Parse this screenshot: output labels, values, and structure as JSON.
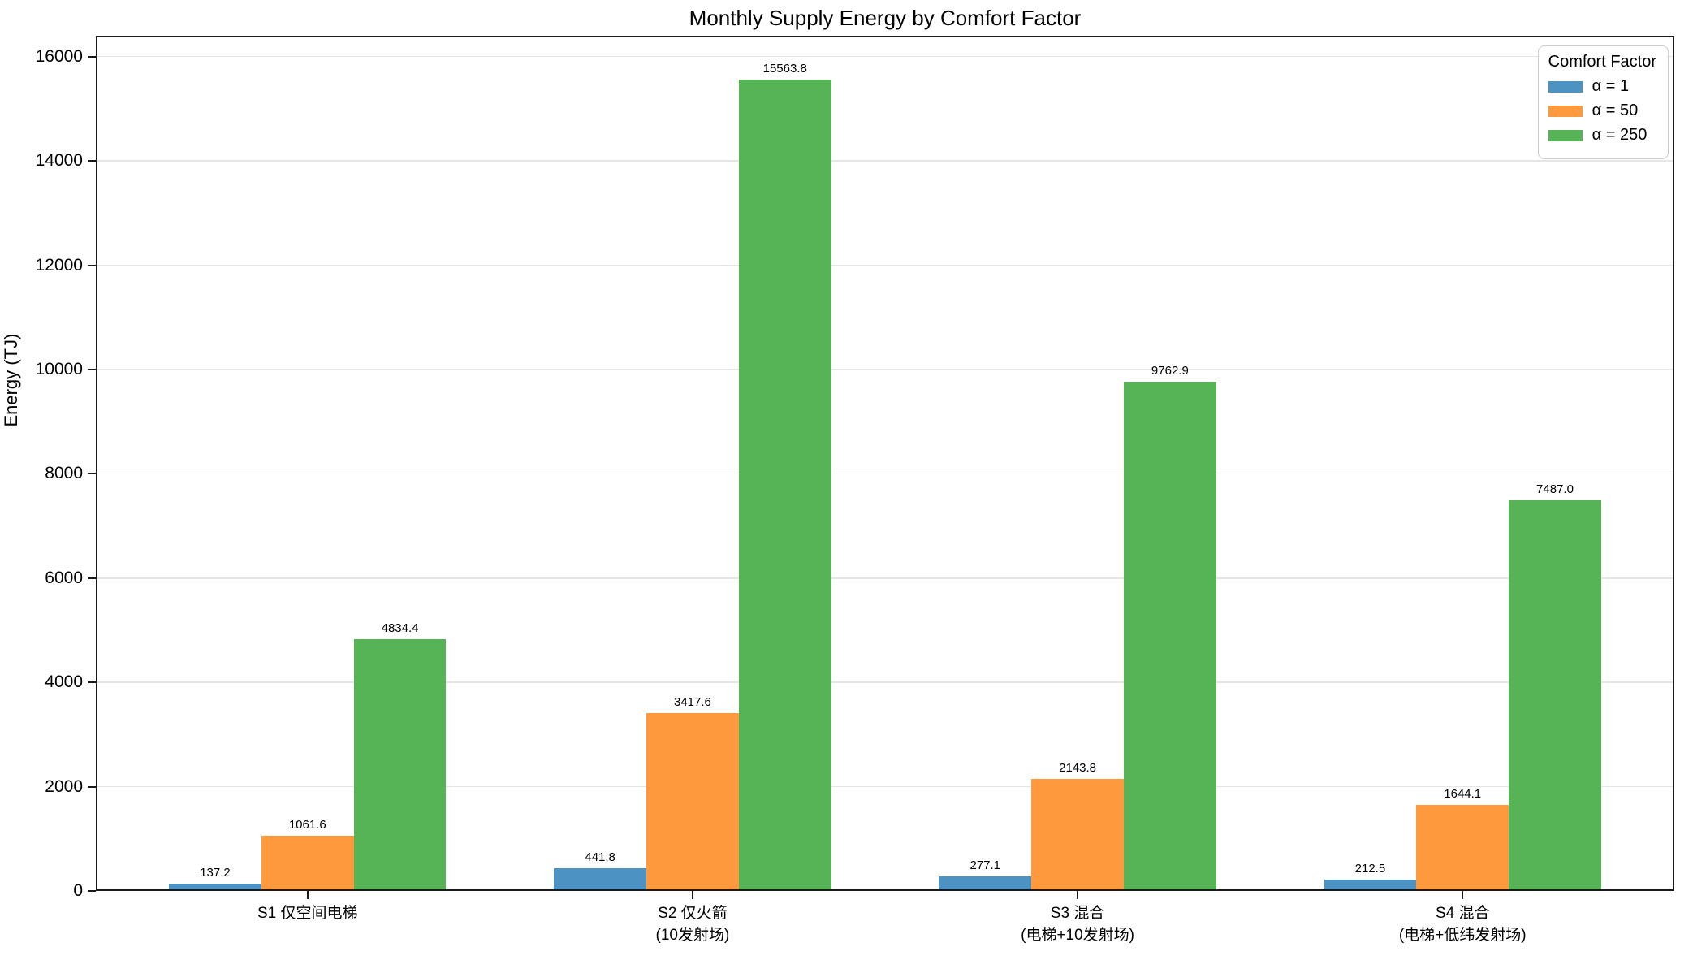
{
  "chart_data": {
    "type": "bar",
    "title": "Monthly Supply Energy by Comfort Factor",
    "xlabel": "",
    "ylabel": "Energy (TJ)",
    "ylim": [
      0,
      16400
    ],
    "yticks": [
      0,
      2000,
      4000,
      6000,
      8000,
      10000,
      12000,
      14000,
      16000
    ],
    "grid": true,
    "categories": [
      {
        "line1": "S1 仅空间电梯",
        "line2": ""
      },
      {
        "line1": "S2 仅火箭",
        "line2": "(10发射场)"
      },
      {
        "line1": "S3 混合",
        "line2": "(电梯+10发射场)"
      },
      {
        "line1": "S4 混合",
        "line2": "(电梯+低纬发射场)"
      }
    ],
    "series": [
      {
        "name": "α = 1",
        "color": "#4c92c3",
        "values": [
          137.2,
          441.8,
          277.1,
          212.5
        ]
      },
      {
        "name": "α = 50",
        "color": "#ff993e",
        "values": [
          1061.6,
          3417.6,
          2143.8,
          1644.1
        ]
      },
      {
        "name": "α = 250",
        "color": "#56b356",
        "values": [
          4834.4,
          15563.8,
          9762.9,
          7487.0
        ]
      }
    ],
    "value_labels": {
      "alpha_1": [
        "137.2",
        "441.8",
        "277.1",
        "212.5"
      ],
      "alpha_50": [
        "1061.6",
        "3417.6",
        "2143.8",
        "1644.1"
      ],
      "alpha_250": [
        "4834.4",
        "15563.8",
        "9762.9",
        "7487.0"
      ]
    },
    "value_label_decimals": 1,
    "bar_width_units": 0.24,
    "xlim_units": [
      -0.55,
      3.55
    ],
    "legend": {
      "title": "Comfort Factor",
      "position": "upper right"
    }
  },
  "colors": {
    "axis": "#1a1a1a",
    "grid": "#e5e5e5",
    "background": "#ffffff",
    "blue": "#4c92c3",
    "orange": "#ff993e",
    "green": "#56b356"
  }
}
